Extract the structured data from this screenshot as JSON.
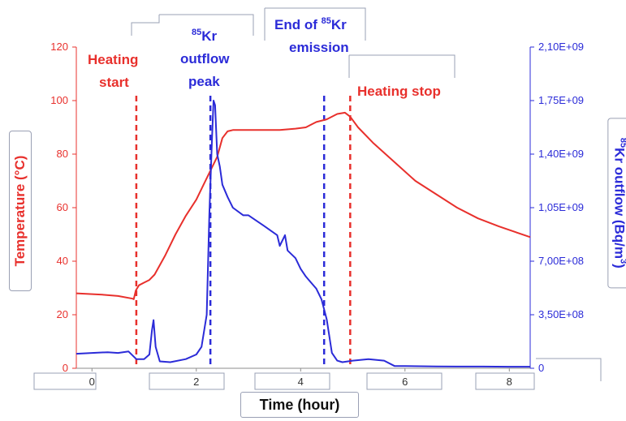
{
  "chart_data": {
    "type": "line",
    "title": "",
    "xlabel": "Time (hour)",
    "ylabel_left": "Temperature (°C)",
    "ylabel_right_sup": "85",
    "ylabel_right_main": "Kr outflow (Bq/m",
    "ylabel_right_sup2": "3",
    "ylabel_right_end": ")",
    "xlim": [
      -0.3,
      8.4
    ],
    "ylim_left": [
      0,
      120
    ],
    "ylim_right": [
      0,
      2100000000
    ],
    "x_ticks": [
      "0",
      "2",
      "4",
      "6",
      "8"
    ],
    "y_ticks_left": [
      "0",
      "20",
      "40",
      "60",
      "80",
      "100",
      "120"
    ],
    "y_ticks_right": [
      "0",
      "3,50E+08",
      "7,00E+08",
      "1,05E+09",
      "1,40E+09",
      "1,75E+09",
      "2,10E+09"
    ],
    "colors": {
      "temperature": "#e8302c",
      "kr_outflow": "#2b2bd8"
    },
    "grid": false,
    "series": [
      {
        "axis": "left",
        "x": [
          -0.3,
          0.2,
          0.5,
          0.78,
          0.8,
          0.84,
          0.9,
          1.0,
          1.1,
          1.2,
          1.4,
          1.6,
          1.8,
          2.0,
          2.2,
          2.4,
          2.5,
          2.6,
          2.7,
          3.0,
          3.3,
          3.6,
          3.9,
          4.1,
          4.3,
          4.5,
          4.7,
          4.85,
          4.95,
          5.1,
          5.4,
          5.8,
          6.2,
          6.6,
          7.0,
          7.4,
          7.8,
          8.1,
          8.4
        ],
        "y": [
          28,
          27.5,
          27,
          26,
          25.8,
          29,
          31,
          32,
          33,
          35,
          42,
          50,
          57,
          63,
          71,
          79,
          86,
          88.5,
          89,
          89,
          89,
          89,
          89.5,
          90,
          92,
          93,
          95,
          95.5,
          94,
          90,
          84,
          77,
          70,
          65,
          60,
          56,
          53,
          51,
          49
        ]
      },
      {
        "axis": "right",
        "x": [
          -0.3,
          0.0,
          0.3,
          0.5,
          0.7,
          0.85,
          1.0,
          1.1,
          1.15,
          1.18,
          1.22,
          1.3,
          1.5,
          1.8,
          2.0,
          2.1,
          2.2,
          2.25,
          2.3,
          2.33,
          2.36,
          2.4,
          2.45,
          2.5,
          2.6,
          2.7,
          2.9,
          3.0,
          3.3,
          3.55,
          3.6,
          3.7,
          3.75,
          3.9,
          4.0,
          4.1,
          4.2,
          4.3,
          4.4,
          4.5,
          4.6,
          4.7,
          4.8,
          5.0,
          5.3,
          5.6,
          5.8,
          6.0,
          6.3,
          6.6,
          7.0,
          7.5,
          8.0,
          8.4
        ],
        "y": [
          95000000,
          100000000,
          105000000,
          100000000,
          110000000,
          60000000,
          60000000,
          90000000,
          250000000,
          315000000,
          140000000,
          45000000,
          40000000,
          60000000,
          90000000,
          140000000,
          350000000,
          1000000000,
          1500000000,
          1750000000,
          1720000000,
          1400000000,
          1320000000,
          1200000000,
          1120000000,
          1050000000,
          1000000000,
          1000000000,
          930000000,
          870000000,
          800000000,
          870000000,
          770000000,
          720000000,
          650000000,
          600000000,
          560000000,
          520000000,
          450000000,
          320000000,
          100000000,
          50000000,
          40000000,
          50000000,
          60000000,
          50000000,
          15000000,
          15000000,
          13000000,
          12000000,
          11000000,
          11000000,
          10000000,
          10000000
        ]
      }
    ],
    "markers": [
      {
        "x": 0.85,
        "color": "#e8302c",
        "label": "Heating start"
      },
      {
        "x": 2.27,
        "color": "#2b2bd8",
        "label": "85Kr outflow peak"
      },
      {
        "x": 4.45,
        "color": "#2b2bd8",
        "label": "End of 85Kr emission"
      },
      {
        "x": 4.95,
        "color": "#e8302c",
        "label": "Heating stop"
      }
    ],
    "annotations": {
      "heating_start_1": "Heating",
      "heating_start_2": "start",
      "peak_sup": "85",
      "peak_1": "Kr",
      "peak_2": "outflow",
      "peak_3": "peak",
      "end_1a": "End of ",
      "end_sup": "85",
      "end_1b": "Kr",
      "end_2": "emission",
      "heating_stop": "Heating stop"
    }
  }
}
